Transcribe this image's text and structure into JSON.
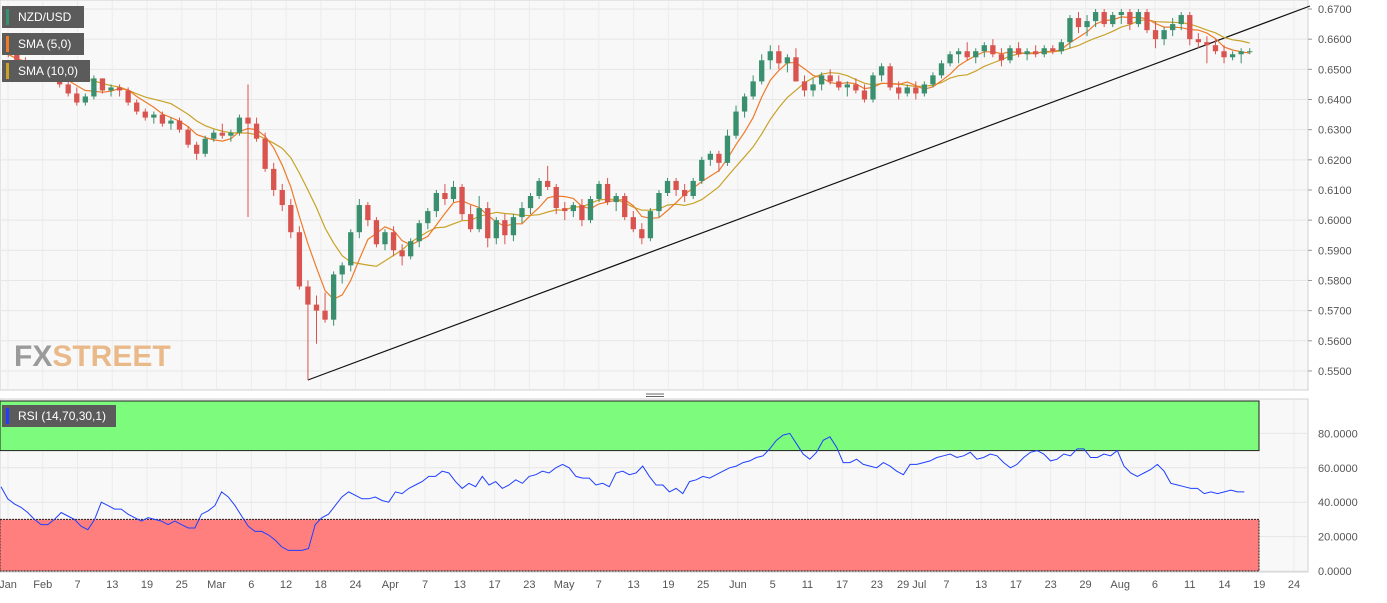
{
  "colors": {
    "bull": "#3a8f6e",
    "bear": "#d9534f",
    "sma5": "#ee7a2a",
    "sma10": "#c9a227",
    "rsi": "#1f3fff",
    "overbought_fill": "#7cfb7c",
    "oversold_fill": "#ff7f7f",
    "panel_bg": "#f8f8f8",
    "legend_bg": "#5b5b5b"
  },
  "legend": {
    "pair": "NZD/USD",
    "sma5": "SMA (5,0)",
    "sma10": "SMA (10,0)",
    "rsi": "RSI (14,70,30,1)"
  },
  "watermark": {
    "fx": "FX",
    "street": "STREET"
  },
  "chart_data": [
    {
      "type": "candlestick",
      "symbol": "NZD/USD",
      "ylim": [
        0.547,
        0.671
      ],
      "y_ticks": [
        "0.6700",
        "0.6600",
        "0.6500",
        "0.6400",
        "0.6300",
        "0.6200",
        "0.6100",
        "0.6000",
        "0.5900",
        "0.5800",
        "0.5700",
        "0.5600",
        "0.5500"
      ],
      "x_ticks": [
        "Jan",
        "Feb",
        "7",
        "13",
        "19",
        "25",
        "Mar",
        "6",
        "12",
        "18",
        "24",
        "Apr",
        "7",
        "13",
        "17",
        "23",
        "May",
        "7",
        "13",
        "19",
        "25",
        "Jun",
        "5",
        "11",
        "17",
        "23",
        "29 Jul",
        "7",
        "13",
        "17",
        "23",
        "29",
        "Aug",
        "6",
        "11",
        "14",
        "19",
        "24"
      ],
      "series": [
        {
          "name": "SMA (5,0)"
        },
        {
          "name": "SMA (10,0)"
        }
      ],
      "ohlc": [
        [
          0.658,
          0.659,
          0.654,
          0.655
        ],
        [
          0.655,
          0.657,
          0.651,
          0.652
        ],
        [
          0.652,
          0.654,
          0.649,
          0.651
        ],
        [
          0.651,
          0.653,
          0.647,
          0.648
        ],
        [
          0.648,
          0.65,
          0.646,
          0.649
        ],
        [
          0.649,
          0.65,
          0.647,
          0.648
        ],
        [
          0.648,
          0.65,
          0.644,
          0.645
        ],
        [
          0.645,
          0.647,
          0.641,
          0.642
        ],
        [
          0.642,
          0.644,
          0.638,
          0.639
        ],
        [
          0.639,
          0.642,
          0.638,
          0.641
        ],
        [
          0.641,
          0.648,
          0.64,
          0.647
        ],
        [
          0.647,
          0.647,
          0.642,
          0.643
        ],
        [
          0.643,
          0.645,
          0.641,
          0.644
        ],
        [
          0.644,
          0.645,
          0.641,
          0.643
        ],
        [
          0.643,
          0.644,
          0.638,
          0.639
        ],
        [
          0.639,
          0.64,
          0.635,
          0.636
        ],
        [
          0.636,
          0.637,
          0.633,
          0.634
        ],
        [
          0.634,
          0.636,
          0.632,
          0.635
        ],
        [
          0.635,
          0.636,
          0.631,
          0.632
        ],
        [
          0.632,
          0.634,
          0.63,
          0.633
        ],
        [
          0.633,
          0.634,
          0.629,
          0.63
        ],
        [
          0.63,
          0.631,
          0.624,
          0.625
        ],
        [
          0.625,
          0.626,
          0.62,
          0.622
        ],
        [
          0.622,
          0.628,
          0.621,
          0.627
        ],
        [
          0.627,
          0.63,
          0.626,
          0.629
        ],
        [
          0.629,
          0.632,
          0.627,
          0.628
        ],
        [
          0.628,
          0.63,
          0.626,
          0.629
        ],
        [
          0.629,
          0.635,
          0.628,
          0.634
        ],
        [
          0.634,
          0.645,
          0.601,
          0.632
        ],
        [
          0.632,
          0.634,
          0.626,
          0.627
        ],
        [
          0.627,
          0.629,
          0.616,
          0.617
        ],
        [
          0.617,
          0.619,
          0.608,
          0.61
        ],
        [
          0.61,
          0.612,
          0.603,
          0.605
        ],
        [
          0.605,
          0.607,
          0.594,
          0.596
        ],
        [
          0.596,
          0.598,
          0.577,
          0.578
        ],
        [
          0.578,
          0.58,
          0.547,
          0.572
        ],
        [
          0.572,
          0.575,
          0.559,
          0.57
        ],
        [
          0.57,
          0.576,
          0.566,
          0.567
        ],
        [
          0.567,
          0.583,
          0.565,
          0.582
        ],
        [
          0.582,
          0.586,
          0.579,
          0.585
        ],
        [
          0.585,
          0.597,
          0.583,
          0.596
        ],
        [
          0.596,
          0.607,
          0.594,
          0.605
        ],
        [
          0.605,
          0.606,
          0.598,
          0.6
        ],
        [
          0.6,
          0.601,
          0.591,
          0.592
        ],
        [
          0.592,
          0.597,
          0.59,
          0.596
        ],
        [
          0.596,
          0.598,
          0.588,
          0.59
        ],
        [
          0.59,
          0.592,
          0.585,
          0.588
        ],
        [
          0.588,
          0.594,
          0.587,
          0.593
        ],
        [
          0.593,
          0.6,
          0.591,
          0.599
        ],
        [
          0.599,
          0.604,
          0.597,
          0.603
        ],
        [
          0.603,
          0.61,
          0.601,
          0.609
        ],
        [
          0.609,
          0.612,
          0.605,
          0.607
        ],
        [
          0.607,
          0.613,
          0.606,
          0.611
        ],
        [
          0.611,
          0.612,
          0.6,
          0.602
        ],
        [
          0.602,
          0.605,
          0.596,
          0.597
        ],
        [
          0.597,
          0.608,
          0.596,
          0.604
        ],
        [
          0.604,
          0.606,
          0.591,
          0.594
        ],
        [
          0.594,
          0.601,
          0.592,
          0.6
        ],
        [
          0.6,
          0.602,
          0.592,
          0.595
        ],
        [
          0.595,
          0.602,
          0.593,
          0.601
        ],
        [
          0.601,
          0.606,
          0.599,
          0.604
        ],
        [
          0.604,
          0.609,
          0.602,
          0.608
        ],
        [
          0.608,
          0.614,
          0.607,
          0.613
        ],
        [
          0.613,
          0.618,
          0.61,
          0.611
        ],
        [
          0.611,
          0.612,
          0.602,
          0.604
        ],
        [
          0.604,
          0.606,
          0.6,
          0.603
        ],
        [
          0.603,
          0.606,
          0.601,
          0.605
        ],
        [
          0.605,
          0.607,
          0.598,
          0.6
        ],
        [
          0.6,
          0.608,
          0.599,
          0.607
        ],
        [
          0.607,
          0.613,
          0.606,
          0.612
        ],
        [
          0.612,
          0.614,
          0.605,
          0.606
        ],
        [
          0.606,
          0.609,
          0.603,
          0.608
        ],
        [
          0.608,
          0.609,
          0.6,
          0.601
        ],
        [
          0.601,
          0.603,
          0.596,
          0.597
        ],
        [
          0.597,
          0.599,
          0.592,
          0.594
        ],
        [
          0.594,
          0.604,
          0.593,
          0.603
        ],
        [
          0.603,
          0.61,
          0.601,
          0.609
        ],
        [
          0.609,
          0.614,
          0.608,
          0.613
        ],
        [
          0.613,
          0.614,
          0.608,
          0.61
        ],
        [
          0.61,
          0.612,
          0.606,
          0.608
        ],
        [
          0.608,
          0.614,
          0.607,
          0.613
        ],
        [
          0.613,
          0.621,
          0.612,
          0.62
        ],
        [
          0.62,
          0.623,
          0.618,
          0.622
        ],
        [
          0.622,
          0.623,
          0.616,
          0.619
        ],
        [
          0.619,
          0.63,
          0.618,
          0.628
        ],
        [
          0.628,
          0.638,
          0.627,
          0.636
        ],
        [
          0.636,
          0.642,
          0.634,
          0.641
        ],
        [
          0.641,
          0.648,
          0.64,
          0.646
        ],
        [
          0.646,
          0.655,
          0.645,
          0.653
        ],
        [
          0.653,
          0.658,
          0.65,
          0.656
        ],
        [
          0.656,
          0.658,
          0.65,
          0.652
        ],
        [
          0.652,
          0.655,
          0.649,
          0.654
        ],
        [
          0.654,
          0.657,
          0.646,
          0.646
        ],
        [
          0.646,
          0.648,
          0.641,
          0.643
        ],
        [
          0.643,
          0.647,
          0.641,
          0.645
        ],
        [
          0.645,
          0.649,
          0.643,
          0.648
        ],
        [
          0.648,
          0.65,
          0.645,
          0.646
        ],
        [
          0.646,
          0.648,
          0.643,
          0.644
        ],
        [
          0.644,
          0.646,
          0.641,
          0.645
        ],
        [
          0.645,
          0.647,
          0.642,
          0.643
        ],
        [
          0.643,
          0.645,
          0.639,
          0.64
        ],
        [
          0.64,
          0.649,
          0.639,
          0.648
        ],
        [
          0.648,
          0.652,
          0.646,
          0.651
        ],
        [
          0.651,
          0.652,
          0.643,
          0.644
        ],
        [
          0.644,
          0.646,
          0.64,
          0.642
        ],
        [
          0.642,
          0.645,
          0.641,
          0.644
        ],
        [
          0.644,
          0.646,
          0.64,
          0.642
        ],
        [
          0.642,
          0.646,
          0.641,
          0.645
        ],
        [
          0.645,
          0.649,
          0.644,
          0.648
        ],
        [
          0.648,
          0.653,
          0.647,
          0.652
        ],
        [
          0.652,
          0.656,
          0.651,
          0.655
        ],
        [
          0.655,
          0.657,
          0.652,
          0.656
        ],
        [
          0.656,
          0.659,
          0.653,
          0.654
        ],
        [
          0.654,
          0.657,
          0.652,
          0.656
        ],
        [
          0.656,
          0.659,
          0.654,
          0.658
        ],
        [
          0.658,
          0.66,
          0.654,
          0.655
        ],
        [
          0.655,
          0.657,
          0.651,
          0.653
        ],
        [
          0.653,
          0.658,
          0.652,
          0.657
        ],
        [
          0.657,
          0.659,
          0.654,
          0.655
        ],
        [
          0.655,
          0.657,
          0.653,
          0.656
        ],
        [
          0.656,
          0.658,
          0.654,
          0.655
        ],
        [
          0.655,
          0.658,
          0.654,
          0.657
        ],
        [
          0.657,
          0.658,
          0.655,
          0.656
        ],
        [
          0.656,
          0.66,
          0.655,
          0.659
        ],
        [
          0.659,
          0.668,
          0.657,
          0.667
        ],
        [
          0.667,
          0.669,
          0.662,
          0.664
        ],
        [
          0.664,
          0.668,
          0.661,
          0.666
        ],
        [
          0.666,
          0.67,
          0.664,
          0.669
        ],
        [
          0.669,
          0.67,
          0.664,
          0.665
        ],
        [
          0.665,
          0.669,
          0.664,
          0.668
        ],
        [
          0.668,
          0.67,
          0.665,
          0.669
        ],
        [
          0.669,
          0.67,
          0.663,
          0.665
        ],
        [
          0.665,
          0.67,
          0.664,
          0.669
        ],
        [
          0.669,
          0.67,
          0.662,
          0.663
        ],
        [
          0.663,
          0.666,
          0.657,
          0.66
        ],
        [
          0.66,
          0.664,
          0.658,
          0.663
        ],
        [
          0.663,
          0.667,
          0.661,
          0.665
        ],
        [
          0.665,
          0.669,
          0.663,
          0.668
        ],
        [
          0.668,
          0.669,
          0.658,
          0.66
        ],
        [
          0.66,
          0.662,
          0.657,
          0.659
        ],
        [
          0.659,
          0.661,
          0.652,
          0.658
        ],
        [
          0.658,
          0.66,
          0.655,
          0.656
        ],
        [
          0.656,
          0.658,
          0.652,
          0.654
        ],
        [
          0.654,
          0.656,
          0.653,
          0.655
        ],
        [
          0.655,
          0.657,
          0.652,
          0.656
        ],
        [
          0.656,
          0.657,
          0.655,
          0.656
        ]
      ],
      "trendline": [
        [
          35,
          0.547
        ],
        [
          145,
          0.671
        ]
      ]
    },
    {
      "type": "line",
      "name": "RSI (14,70,30,1)",
      "ylim": [
        0,
        100
      ],
      "y_ticks": [
        "80.0000",
        "60.0000",
        "40.0000",
        "20.0000",
        "0.0000"
      ],
      "overbought": 70,
      "oversold": 30,
      "values": [
        49,
        42,
        39,
        37,
        34,
        30,
        27,
        27,
        30,
        34,
        32,
        30,
        26,
        24,
        30,
        40,
        38,
        36,
        36,
        33,
        31,
        29,
        31,
        30,
        29,
        27,
        29,
        27,
        25,
        25,
        33,
        35,
        38,
        46,
        43,
        38,
        32,
        26,
        23,
        23,
        21,
        18,
        14,
        12,
        12,
        12,
        13,
        27,
        31,
        33,
        38,
        43,
        46,
        44,
        42,
        42,
        43,
        41,
        40,
        46,
        45,
        48,
        50,
        52,
        55,
        55,
        58,
        57,
        52,
        48,
        51,
        49,
        55,
        50,
        52,
        48,
        50,
        53,
        51,
        55,
        56,
        58,
        57,
        60,
        62,
        60,
        55,
        54,
        54,
        50,
        51,
        49,
        57,
        58,
        56,
        57,
        61,
        55,
        50,
        50,
        46,
        48,
        45,
        52,
        53,
        55,
        54,
        56,
        58,
        60,
        61,
        63,
        64,
        66,
        67,
        71,
        76,
        79,
        80,
        74,
        68,
        65,
        69,
        76,
        78,
        72,
        63,
        63,
        65,
        62,
        61,
        60,
        63,
        61,
        58,
        56,
        62,
        62,
        63,
        64,
        66,
        67,
        68,
        66,
        67,
        69,
        65,
        66,
        68,
        67,
        63,
        60,
        62,
        66,
        69,
        70,
        68,
        64,
        65,
        68,
        67,
        71,
        71,
        66,
        66,
        68,
        67,
        70,
        61,
        57,
        55,
        57,
        59,
        62,
        58,
        51,
        50,
        49,
        48,
        48,
        45,
        46,
        45,
        46,
        47,
        46,
        46
      ]
    }
  ]
}
